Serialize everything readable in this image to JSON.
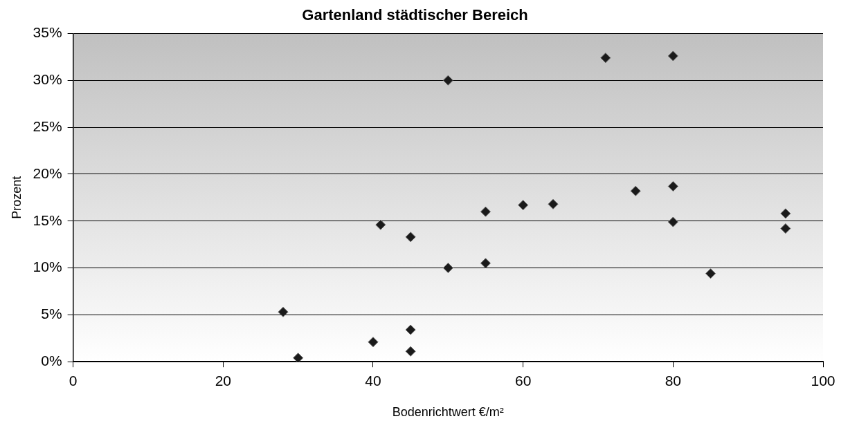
{
  "chart_data": {
    "type": "scatter",
    "title": "Gartenland städtischer Bereich",
    "xlabel": "Bodenrichtwert €/m²",
    "ylabel": "Prozent",
    "x": [
      28,
      30,
      40,
      41,
      45,
      45,
      45,
      50,
      50,
      55,
      55,
      60,
      64,
      71,
      75,
      80,
      80,
      80,
      85,
      95,
      95
    ],
    "values": [
      5.3,
      0.4,
      2.1,
      14.6,
      13.3,
      3.4,
      1.1,
      30,
      10,
      16,
      10.5,
      16.7,
      16.8,
      32.4,
      18.2,
      32.6,
      18.7,
      14.9,
      9.4,
      15.8,
      14.2
    ],
    "color": "#1a1a1a",
    "marker": "diamond",
    "grid": "y",
    "legend": false,
    "xlim": [
      0,
      100
    ],
    "xticks": [
      0,
      20,
      40,
      60,
      80,
      100
    ],
    "ylim": [
      0,
      35
    ],
    "yticks": [
      {
        "value": 0,
        "label": "0%"
      },
      {
        "value": 5,
        "label": "5%"
      },
      {
        "value": 10,
        "label": "10%"
      },
      {
        "value": 15,
        "label": "15%"
      },
      {
        "value": 20,
        "label": "20%"
      },
      {
        "value": 25,
        "label": "25%"
      },
      {
        "value": 30,
        "label": "30%"
      },
      {
        "value": 35,
        "label": "35%"
      }
    ]
  }
}
